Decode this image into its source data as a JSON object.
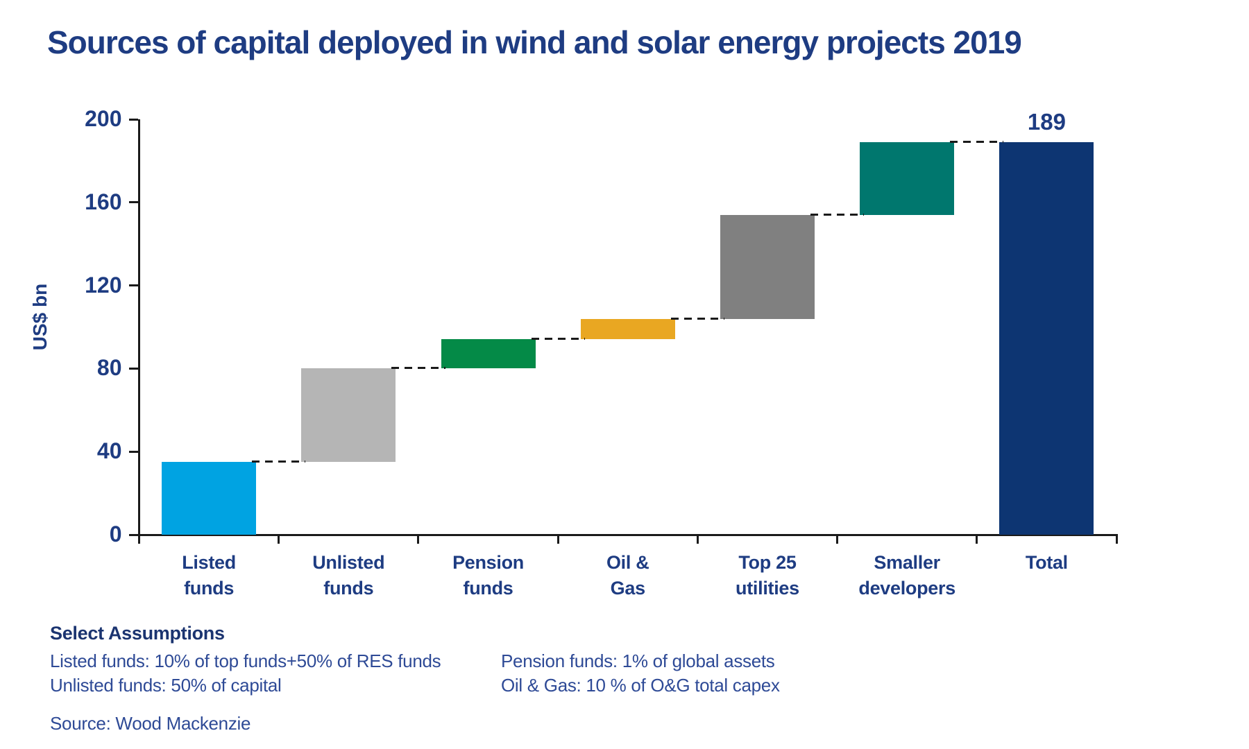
{
  "title": "Sources of capital deployed in wind and solar energy projects 2019",
  "chart_data": {
    "type": "bar",
    "subtype": "waterfall",
    "title": "Sources of capital deployed in wind and solar energy projects 2019",
    "xlabel": "",
    "ylabel": "US$ bn",
    "ylim": [
      0,
      200
    ],
    "ytick_step": 40,
    "yticks": [
      0,
      40,
      80,
      120,
      160,
      200
    ],
    "grid": false,
    "legend": false,
    "connector_style": "dashed",
    "categories": [
      "Listed funds",
      "Unlisted funds",
      "Pension funds",
      "Oil & Gas",
      "Top 25 utilities",
      "Smaller developers",
      "Total"
    ],
    "segments": [
      {
        "name": "listed-funds",
        "label_lines": [
          "Listed",
          "funds"
        ],
        "start": 0,
        "end": 35,
        "value": 35,
        "color": "#00A3E2",
        "is_total": false
      },
      {
        "name": "unlisted-funds",
        "label_lines": [
          "Unlisted",
          "funds"
        ],
        "start": 35,
        "end": 80,
        "value": 45,
        "color": "#B5B5B5",
        "is_total": false
      },
      {
        "name": "pension-funds",
        "label_lines": [
          "Pension",
          "funds"
        ],
        "start": 80,
        "end": 94,
        "value": 14,
        "color": "#048A47",
        "is_total": false
      },
      {
        "name": "oil-and-gas",
        "label_lines": [
          "Oil &",
          "Gas"
        ],
        "start": 94,
        "end": 104,
        "value": 10,
        "color": "#E9A722",
        "is_total": false
      },
      {
        "name": "top-25-utilities",
        "label_lines": [
          "Top 25",
          "utilities"
        ],
        "start": 104,
        "end": 154,
        "value": 50,
        "color": "#808080",
        "is_total": false
      },
      {
        "name": "smaller-developers",
        "label_lines": [
          "Smaller",
          "developers"
        ],
        "start": 154,
        "end": 189,
        "value": 35,
        "color": "#00776E",
        "is_total": false
      },
      {
        "name": "total",
        "label_lines": [
          "Total"
        ],
        "start": 0,
        "end": 189,
        "value": 189,
        "color": "#0D3572",
        "is_total": true,
        "data_label": "189"
      }
    ],
    "total_data_label": "189"
  },
  "assumptions": {
    "heading": "Select Assumptions",
    "col1": [
      "Listed funds: 10% of top funds+50% of RES funds",
      "Unlisted funds: 50% of capital"
    ],
    "col2": [
      "Pension funds: 1% of global assets",
      "Oil & Gas: 10 % of O&G total capex"
    ]
  },
  "source": "Source: Wood Mackenzie",
  "colors": {
    "title_text": "#1E3C82",
    "axis_text": "#1E3C82",
    "body_text": "#2E4A96",
    "axis_line": "#1A1A1A"
  }
}
